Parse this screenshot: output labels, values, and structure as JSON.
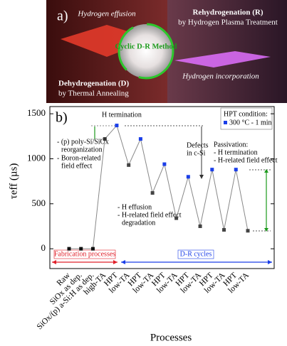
{
  "illustration": {
    "label": "a)",
    "effusion": "Hydrogen effusion",
    "rehydrogenation": "Rehydrogenation (R)",
    "plasma": "by Hydrogen Plasma Treatment",
    "method": "Cyclic D-R Method",
    "incorporation": "Hydrogen incorporation",
    "dehydrogenation": "Dehydrogenation (D)",
    "annealing": "by Thermal Annealing"
  },
  "chart_data": {
    "type": "line",
    "panel_label": "b)",
    "y_label": "τeff (µs)",
    "x_label": "Processes",
    "categories": [
      "Raw",
      "SiOx as dep.",
      "SiOx/(p) a-Si:H as dep.",
      "high-TA",
      "HPT",
      "low-TA",
      "HPT",
      "low-TA",
      "HPT",
      "low-TA",
      "HPT",
      "low-TA",
      "HPT",
      "low-TA",
      "HPT",
      "low-TA"
    ],
    "values": [
      0,
      0,
      0,
      1220,
      1370,
      930,
      1220,
      620,
      940,
      340,
      800,
      250,
      880,
      210,
      880,
      200
    ],
    "marker_colors": [
      "#111111",
      "#111111",
      "#111111",
      "#333333",
      "#1a3ee8",
      "#444444",
      "#1a3ee8",
      "#444444",
      "#1a3ee8",
      "#444444",
      "#1a3ee8",
      "#444444",
      "#1a3ee8",
      "#444444",
      "#1a3ee8",
      "#444444"
    ],
    "line_color": "#888888",
    "ylim": [
      -220,
      1580
    ],
    "yticks": [
      0,
      500,
      1000,
      1500
    ],
    "annotations": {
      "h_termination": "H termination",
      "reorg1": "- (p) poly-Si/SiOx",
      "reorg2": "reorganization",
      "boron1": "- Boron-related",
      "boron2": "field effect",
      "defects1": "Defects",
      "defects2": "in c-Si",
      "effusion": "- H effusion",
      "degr1": "- H-related field effect",
      "degr2": "degradation",
      "hpt_title": "HPT condition:",
      "hpt_value": "300 °C - 1 min",
      "pass_title": "Passivation:",
      "pass1": "- H termination",
      "pass2": "- H-related field effect",
      "fabrication": "Fabrication processes",
      "cycles": "D-R cycles"
    }
  }
}
